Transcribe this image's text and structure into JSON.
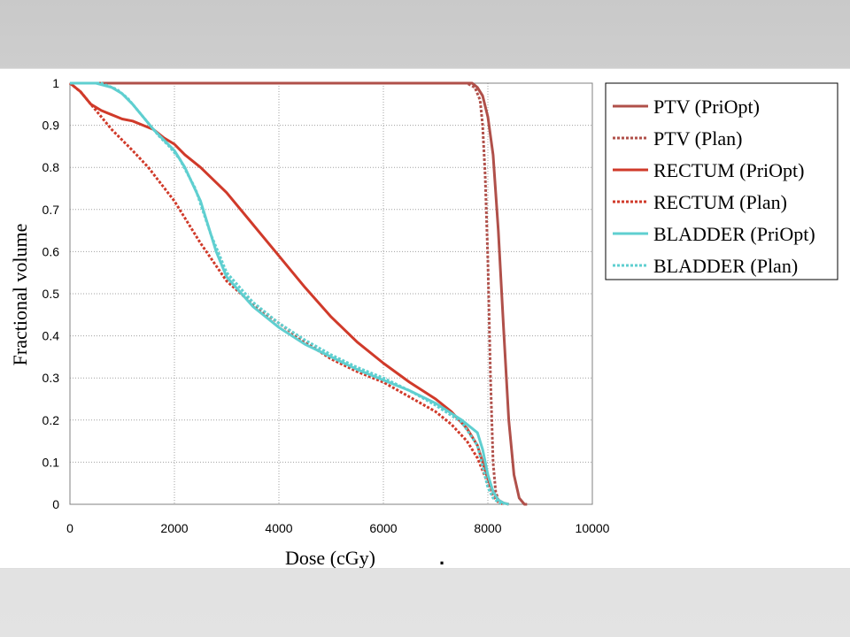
{
  "chart_data": {
    "type": "line",
    "xlabel": "Dose (cGy)",
    "ylabel": "Fractional volume",
    "xlim": [
      0,
      10000
    ],
    "ylim": [
      0,
      1
    ],
    "x_ticks": [
      "0",
      "2000",
      "4000",
      "6000",
      "8000",
      "10000"
    ],
    "y_ticks": [
      "0",
      "0.1",
      "0.2",
      "0.3",
      "0.4",
      "0.5",
      "0.6",
      "0.7",
      "0.8",
      "0.9",
      "1"
    ],
    "grid": true,
    "legend_position": "right",
    "series": [
      {
        "name": "PTV (PriOpt)",
        "color": "#b0504a",
        "style": "solid",
        "x": [
          0,
          7500,
          7700,
          7800,
          7900,
          8000,
          8100,
          8200,
          8300,
          8400,
          8500,
          8600,
          8700,
          8750
        ],
        "y": [
          1,
          1,
          1,
          0.99,
          0.97,
          0.92,
          0.83,
          0.65,
          0.42,
          0.2,
          0.07,
          0.015,
          0,
          0
        ]
      },
      {
        "name": "PTV (Plan)",
        "color": "#b0504a",
        "style": "dashed",
        "x": [
          0,
          7600,
          7750,
          7850,
          7900,
          7950,
          8000,
          8050,
          8100,
          8150,
          8200,
          8300
        ],
        "y": [
          1,
          1,
          0.99,
          0.96,
          0.9,
          0.78,
          0.58,
          0.3,
          0.1,
          0.03,
          0.01,
          0
        ]
      },
      {
        "name": "RECTUM (PriOpt)",
        "color": "#d03a2a",
        "style": "solid",
        "x": [
          0,
          200,
          400,
          600,
          800,
          1000,
          1200,
          1400,
          1600,
          1800,
          2000,
          2200,
          2500,
          3000,
          3500,
          4000,
          4500,
          5000,
          5500,
          6000,
          6500,
          7000,
          7300,
          7600,
          7800,
          7900,
          8000,
          8100,
          8200,
          8300,
          8400
        ],
        "y": [
          1,
          0.98,
          0.95,
          0.935,
          0.925,
          0.915,
          0.91,
          0.9,
          0.89,
          0.87,
          0.855,
          0.83,
          0.8,
          0.74,
          0.665,
          0.59,
          0.515,
          0.445,
          0.385,
          0.335,
          0.29,
          0.25,
          0.22,
          0.18,
          0.14,
          0.1,
          0.06,
          0.03,
          0.01,
          0.003,
          0
        ]
      },
      {
        "name": "RECTUM (Plan)",
        "color": "#d03a2a",
        "style": "dashed",
        "x": [
          0,
          200,
          400,
          600,
          800,
          1000,
          1200,
          1500,
          2000,
          2500,
          3000,
          3500,
          4000,
          4500,
          5000,
          5500,
          6000,
          6500,
          7000,
          7300,
          7600,
          7800,
          7900,
          8000,
          8100,
          8200,
          8300
        ],
        "y": [
          1,
          0.98,
          0.95,
          0.92,
          0.89,
          0.865,
          0.84,
          0.8,
          0.72,
          0.62,
          0.53,
          0.475,
          0.43,
          0.385,
          0.345,
          0.315,
          0.29,
          0.255,
          0.22,
          0.19,
          0.15,
          0.11,
          0.08,
          0.05,
          0.02,
          0.005,
          0
        ]
      },
      {
        "name": "BLADDER (PriOpt)",
        "color": "#5fcfd0",
        "style": "solid",
        "x": [
          0,
          500,
          800,
          1000,
          1200,
          1400,
          1600,
          1800,
          2000,
          2200,
          2500,
          2800,
          3000,
          3500,
          4000,
          4500,
          5000,
          5500,
          6000,
          6500,
          7000,
          7500,
          7800,
          7900,
          8000,
          8100,
          8200,
          8300,
          8400
        ],
        "y": [
          1,
          1,
          0.99,
          0.975,
          0.95,
          0.92,
          0.89,
          0.865,
          0.84,
          0.8,
          0.72,
          0.6,
          0.54,
          0.47,
          0.42,
          0.38,
          0.35,
          0.32,
          0.295,
          0.27,
          0.24,
          0.2,
          0.17,
          0.13,
          0.07,
          0.03,
          0.01,
          0.003,
          0
        ]
      },
      {
        "name": "BLADDER (Plan)",
        "color": "#5fcfd0",
        "style": "dashed",
        "x": [
          0,
          600,
          900,
          1100,
          1300,
          1500,
          1700,
          1900,
          2100,
          2400,
          2700,
          3000,
          3500,
          4000,
          4500,
          5000,
          5500,
          6000,
          6500,
          7000,
          7500,
          7800,
          7900,
          8000,
          8100,
          8200,
          8300
        ],
        "y": [
          1,
          1,
          0.985,
          0.965,
          0.935,
          0.905,
          0.875,
          0.85,
          0.82,
          0.75,
          0.64,
          0.55,
          0.48,
          0.43,
          0.39,
          0.355,
          0.325,
          0.3,
          0.27,
          0.235,
          0.195,
          0.14,
          0.09,
          0.04,
          0.015,
          0.005,
          0
        ]
      }
    ]
  },
  "footer_marker": "."
}
